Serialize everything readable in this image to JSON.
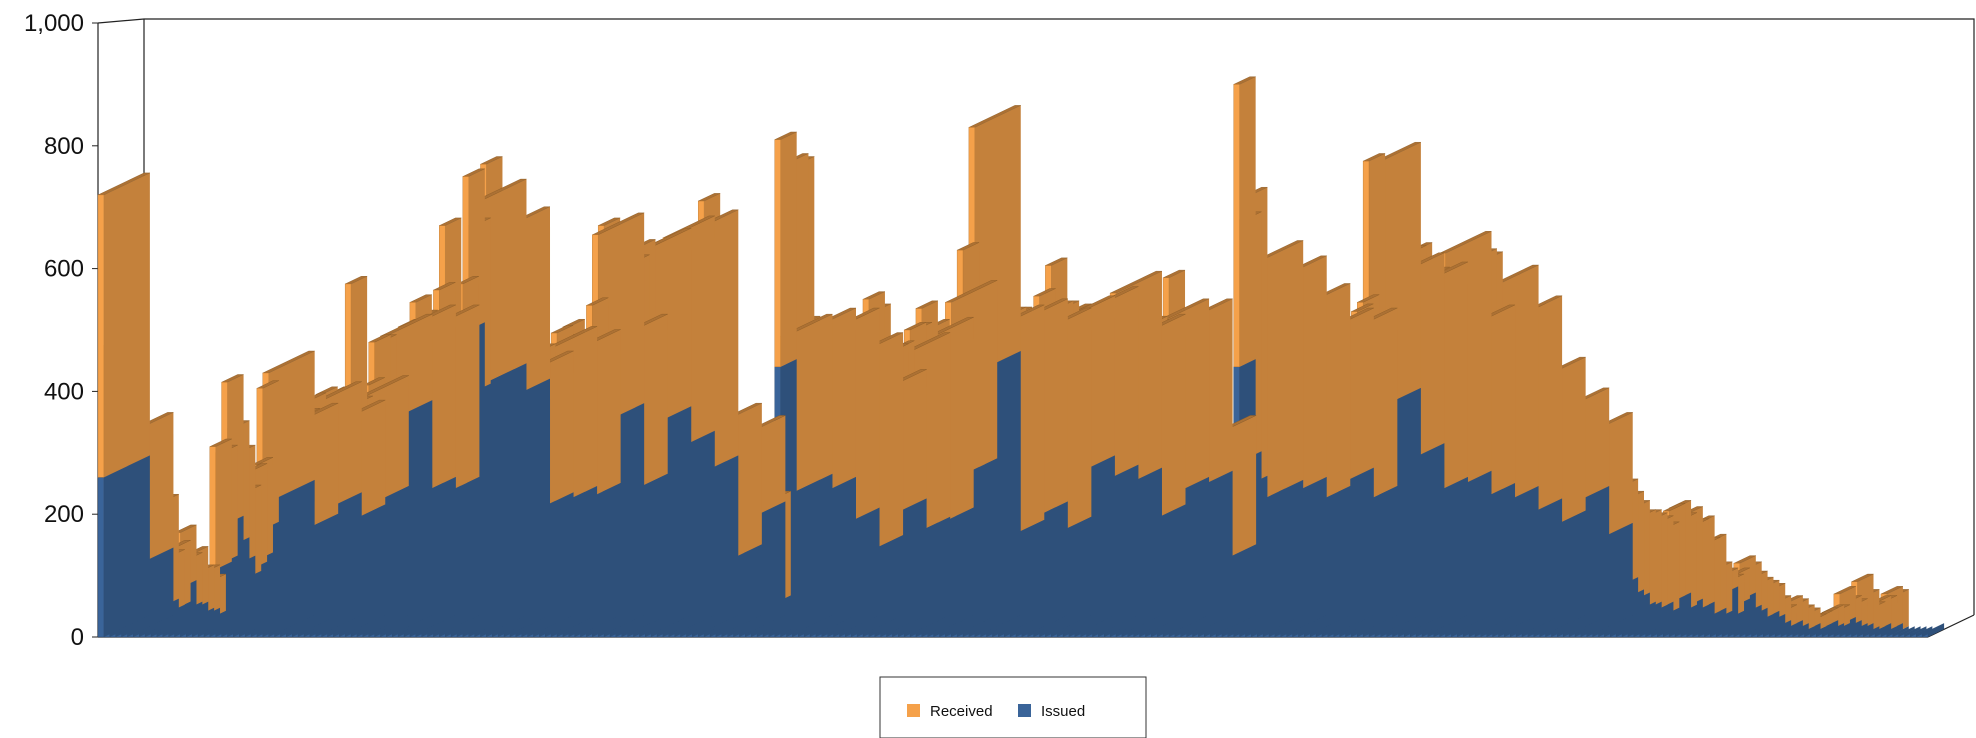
{
  "chart_data": {
    "type": "bar",
    "stacked": true,
    "three_d": true,
    "title": "",
    "xlabel": "",
    "ylabel": "",
    "ylim": [
      0,
      1000
    ],
    "y_ticks": [
      0,
      200,
      400,
      600,
      800,
      1000
    ],
    "y_tick_labels": [
      "0",
      "200",
      "400",
      "600",
      "800",
      "1,000"
    ],
    "x_tick_labels": "none",
    "grid": false,
    "legend_position": "bottom-center",
    "series": [
      {
        "name": "Issued",
        "color": "#3a6499",
        "values": [
          260,
          175,
          230,
          200,
          110,
          110,
          85,
          75,
          70,
          95,
          50,
          40,
          45,
          80,
          45,
          45,
          35,
          35,
          30,
          110,
          120,
          185,
          150,
          120,
          95,
          110,
          125,
          175,
          220,
          185,
          170,
          185,
          165,
          175,
          180,
          195,
          200,
          205,
          110,
          195,
          180,
          180,
          275,
          230,
          210,
          110,
          260,
          235,
          350,
          230,
          235,
          255,
          225,
          285,
          290,
          270,
          225,
          305,
          290,
          150,
          35,
          325,
          500,
          400,
          410,
          440,
          445,
          450,
          385,
          230,
          295,
          250,
          200,
          205,
          235,
          200,
          210,
          240,
          230,
          235,
          215,
          230,
          140,
          250,
          345,
          300,
          230,
          235,
          230,
          320,
          330,
          335,
          340,
          325,
          275,
          280,
          300,
          290,
          235,
          250,
          260,
          280,
          310,
          355,
          115,
          100,
          110,
          210,
          185,
          80,
          90,
          75,
          95,
          55,
          55,
          440,
          230,
          375,
          380,
          250,
          225,
          200,
          190,
          190,
          175,
          190,
          165,
          175,
          130,
          220,
          280,
          280,
          190,
          205,
          195,
          180,
          160,
          190,
          200,
          195,
          175,
          195,
          175,
          200,
          255,
          125,
          300,
          235,
          430,
          185,
          340,
          165,
          155,
          195,
          195,
          235,
          185,
          185,
          180,
          205,
          160,
          305,
          225,
          225,
          260,
          230,
          210,
          130,
          245,
          180,
          165,
          225,
          240,
          200,
          200,
          165,
          180,
          210,
          200,
          225,
          225,
          265,
          190,
          205,
          235,
          145,
          110,
          110,
          115,
          235,
          165,
          20,
          30,
          440,
          290,
          250,
          220,
          215,
          235,
          230,
          225,
          210,
          195,
          185,
          210,
          195,
          210,
          175,
          240,
          190,
          220,
          220,
          210,
          180,
          215,
          395,
          370,
          330,
          250,
          165,
          280,
          225,
          265,
          250,
          225,
          215,
          190,
          160,
          235,
          220,
          215,
          220,
          215,
          200,
          280,
          235,
          210,
          200,
          155,
          160,
          190,
          160,
          185,
          180,
          170,
          165,
          230,
          230,
          210,
          85,
          120,
          115,
          150,
          115,
          125,
          75,
          100,
          80,
          85,
          65,
          60,
          45,
          45,
          40,
          45,
          35,
          55,
          60,
          40,
          50,
          40,
          45,
          30,
          35,
          30,
          70,
          30,
          50,
          60,
          40,
          35,
          25,
          30,
          25,
          15,
          10,
          15,
          10,
          5,
          10,
          5,
          10,
          15,
          10,
          10,
          20,
          15,
          10,
          10,
          5,
          5,
          10,
          5,
          10,
          5,
          5,
          5,
          5,
          5,
          5,
          10
        ]
      },
      {
        "name": "Received",
        "color": "#f5a14a",
        "values": [
          460,
          300,
          450,
          410,
          220,
          170,
          180,
          150,
          160,
          180,
          170,
          90,
          100,
          90,
          80,
          90,
          70,
          70,
          60,
          200,
          180,
          230,
          190,
          180,
          140,
          160,
          155,
          230,
          210,
          170,
          200,
          160,
          180,
          175,
          180,
          190,
          180,
          190,
          180,
          200,
          170,
          190,
          300,
          150,
          180,
          300,
          220,
          245,
          140,
          240,
          230,
          250,
          280,
          260,
          230,
          240,
          280,
          260,
          380,
          240,
          200,
          250,
          250,
          270,
          300,
          330,
          240,
          260,
          280,
          255,
          260,
          250,
          230,
          210,
          230,
          240,
          260,
          255,
          250,
          270,
          250,
          230,
          200,
          290,
          310,
          370,
          260,
          230,
          260,
          320,
          280,
          300,
          290,
          310,
          330,
          320,
          350,
          300,
          390,
          330,
          400,
          390,
          400,
          150,
          230,
          160,
          100,
          130,
          140,
          130,
          150,
          180,
          160,
          170,
          170,
          370,
          260,
          400,
          390,
          260,
          275,
          290,
          250,
          280,
          325,
          310,
          270,
          280,
          330,
          300,
          270,
          250,
          210,
          270,
          270,
          290,
          300,
          310,
          300,
          340,
          310,
          310,
          270,
          220,
          290,
          300,
          330,
          320,
          400,
          320,
          340,
          330,
          350,
          320,
          330,
          290,
          330,
          330,
          320,
          350,
          340,
          300,
          310,
          310,
          260,
          300,
          320,
          250,
          290,
          280,
          290,
          300,
          320,
          300,
          300,
          320,
          310,
          300,
          310,
          280,
          290,
          320,
          300,
          260,
          280,
          280,
          250,
          240,
          210,
          200,
          150,
          10,
          60,
          460,
          390,
          470,
          390,
          360,
          330,
          330,
          360,
          330,
          290,
          310,
          330,
          300,
          290,
          290,
          260,
          320,
          280,
          260,
          290,
          350,
          330,
          380,
          400,
          350,
          410,
          250,
          310,
          390,
          360,
          380,
          350,
          350,
          400,
          410,
          390,
          380,
          370,
          380,
          290,
          410,
          340,
          380,
          360,
          340,
          340,
          360,
          330,
          340,
          310,
          350,
          250,
          190,
          160,
          170,
          160,
          190,
          180,
          180,
          180,
          170,
          180,
          170,
          170,
          180,
          160,
          160,
          150,
          150,
          150,
          150,
          140,
          140,
          150,
          150,
          150,
          150,
          140,
          140,
          120,
          120,
          80,
          30,
          60,
          50,
          60,
          70,
          60,
          60,
          50,
          50,
          40,
          30,
          40,
          40,
          35,
          25,
          20,
          20,
          20,
          30,
          30,
          50,
          40,
          40,
          80,
          60,
          40,
          45,
          50,
          60,
          60
        ]
      }
    ],
    "legend": [
      {
        "label": "Received",
        "color": "#f5a14a"
      },
      {
        "label": "Issued",
        "color": "#3a6499"
      }
    ]
  }
}
